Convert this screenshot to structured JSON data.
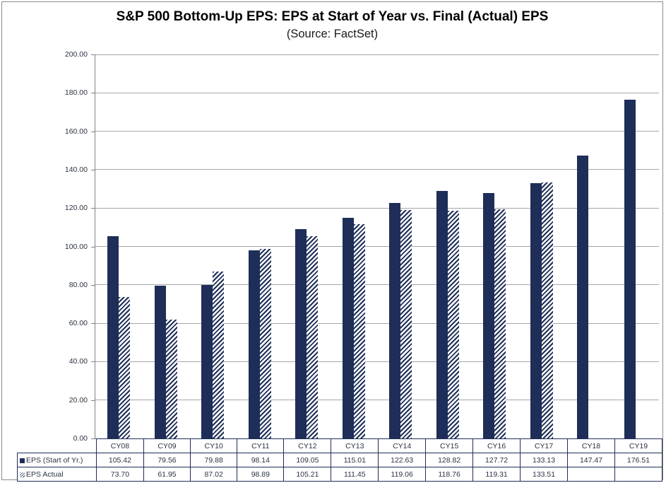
{
  "chart_data": {
    "type": "bar",
    "title": "S&P 500 Bottom-Up EPS: EPS at Start of Year vs. Final (Actual) EPS",
    "subtitle": "(Source: FactSet)",
    "categories": [
      "CY08",
      "CY09",
      "CY10",
      "CY11",
      "CY12",
      "CY13",
      "CY14",
      "CY15",
      "CY16",
      "CY17",
      "CY18",
      "CY19"
    ],
    "series": [
      {
        "name": "EPS (Start of Yr.)",
        "fill": "solid",
        "values": [
          105.42,
          79.56,
          79.88,
          98.14,
          109.05,
          115.01,
          122.63,
          128.82,
          127.72,
          133.13,
          147.47,
          176.51
        ]
      },
      {
        "name": "EPS Actual",
        "fill": "diagonal-hatch",
        "values": [
          73.7,
          61.95,
          87.02,
          98.89,
          105.21,
          111.45,
          119.06,
          118.76,
          119.31,
          133.51,
          null,
          null
        ]
      }
    ],
    "ylim": [
      0,
      200
    ],
    "ytick_step": 20,
    "ytick_decimals": 2,
    "grid": "horizontal-on",
    "legend_position": "data-table-left-column",
    "value_decimals": 2,
    "colors": {
      "bar_navy": "#1e2e58",
      "hatch_background": "#ffffff",
      "gridline": "#a6a6a6",
      "axis_line": "#808080",
      "table_border": "#1e2e58",
      "text": "#2a3342",
      "title_text": "#000000"
    }
  }
}
